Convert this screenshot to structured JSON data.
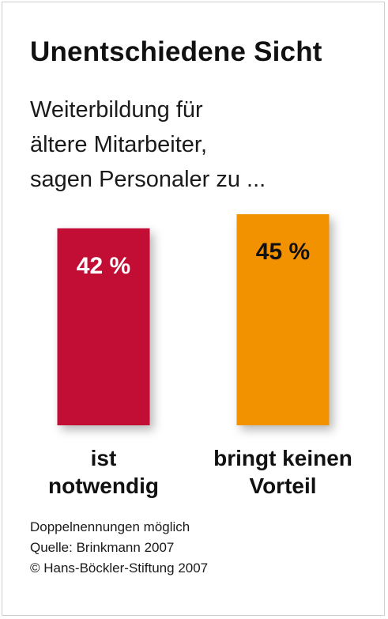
{
  "chart_data": {
    "type": "bar",
    "title": "Unentschiedene Sicht",
    "subtitle_lines": [
      "Weiterbildung für",
      "ältere Mitarbeiter,",
      "sagen Personaler zu ..."
    ],
    "categories": [
      [
        "ist",
        "notwendig"
      ],
      [
        "bringt keinen",
        "Vorteil"
      ]
    ],
    "values": [
      42,
      45
    ],
    "value_labels": [
      "42 %",
      "45 %"
    ],
    "colors": [
      "#c20f35",
      "#f39200"
    ],
    "value_label_colors": [
      "#ffffff",
      "#111111"
    ],
    "ylim": [
      0,
      45
    ]
  },
  "footnotes": [
    "Doppelnennungen möglich",
    "Quelle: Brinkmann 2007",
    "© Hans-Böckler-Stiftung 2007"
  ]
}
